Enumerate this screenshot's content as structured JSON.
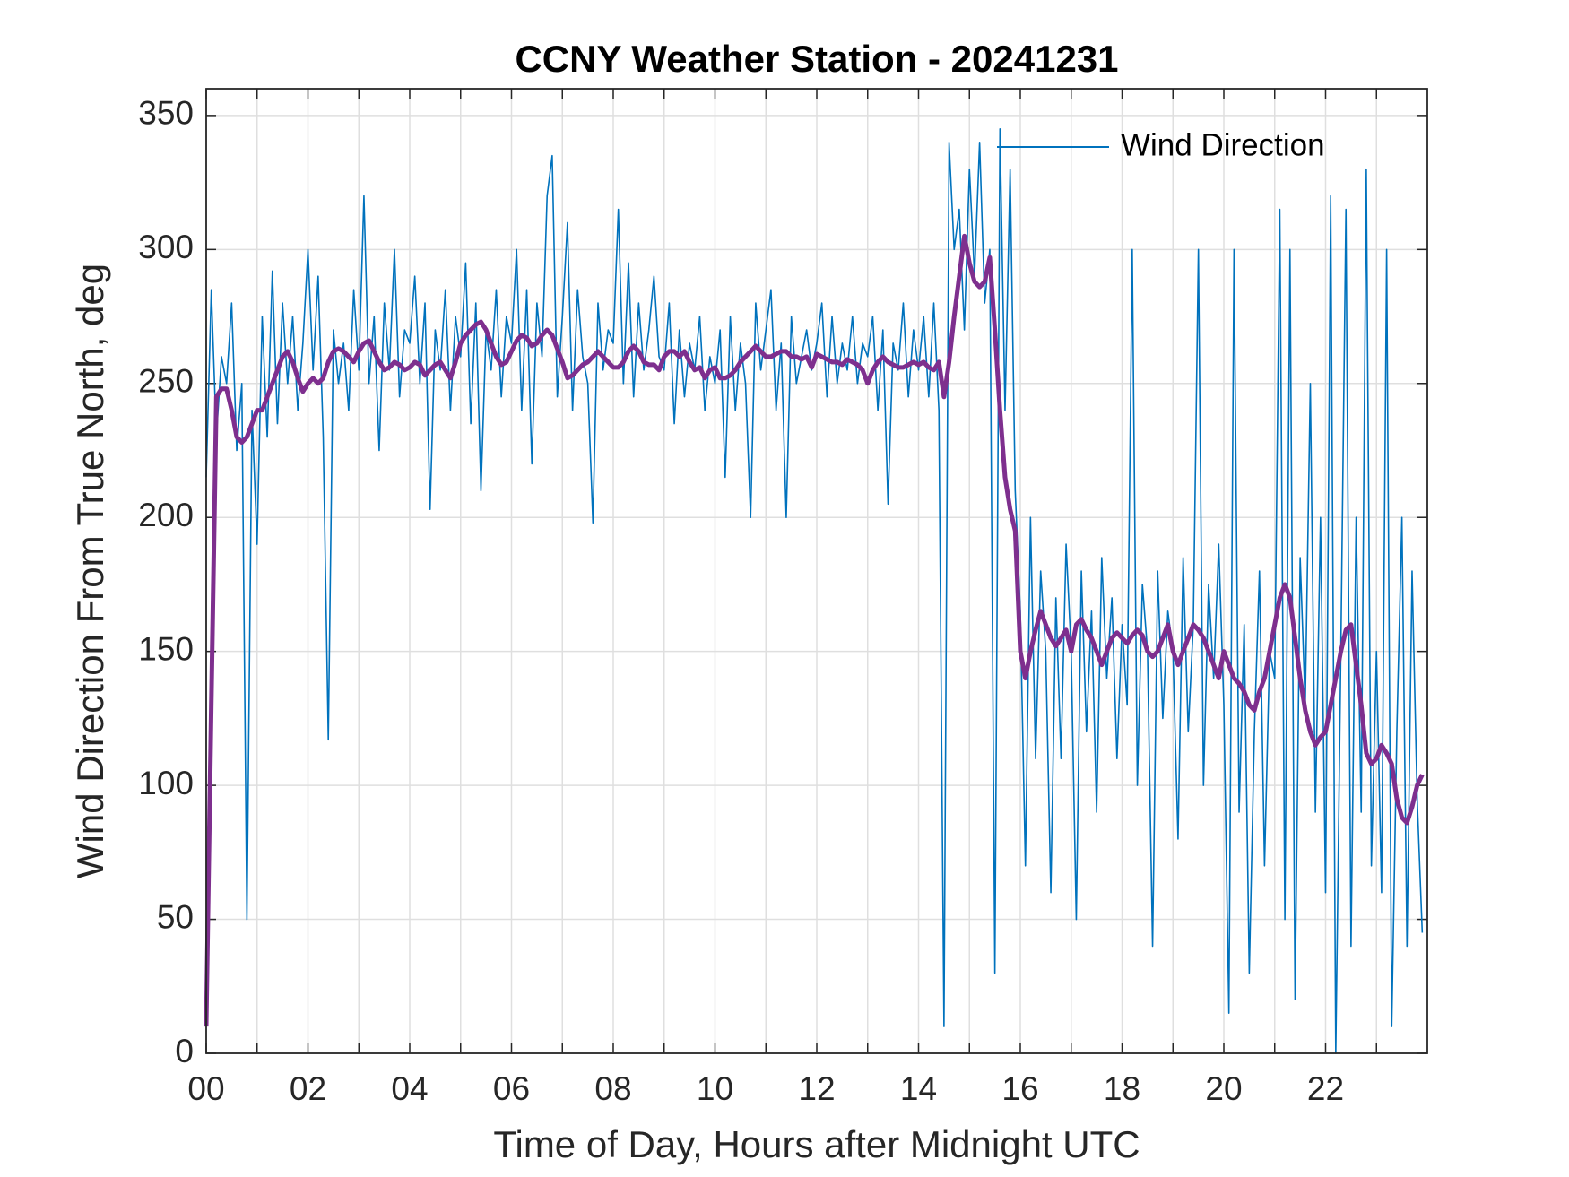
{
  "chart_data": {
    "type": "line",
    "title": "CCNY Weather Station - 20241231",
    "xlabel": "Time of Day, Hours after Midnight UTC",
    "ylabel": "Wind Direction From True North, deg",
    "xlim": [
      0,
      24
    ],
    "ylim": [
      0,
      360
    ],
    "xticks": [
      {
        "value": 0,
        "label": "00"
      },
      {
        "value": 2,
        "label": "02"
      },
      {
        "value": 4,
        "label": "04"
      },
      {
        "value": 6,
        "label": "06"
      },
      {
        "value": 8,
        "label": "08"
      },
      10,
      12,
      14,
      16,
      18,
      20,
      22
    ],
    "xminorticks": [
      1,
      3,
      5,
      7,
      9,
      11,
      13,
      15,
      17,
      19,
      21,
      23
    ],
    "yticks": [
      0,
      50,
      100,
      150,
      200,
      250,
      300,
      350
    ],
    "grid": true,
    "legend": "upper right",
    "x": [
      0,
      0.1,
      0.2,
      0.3,
      0.4,
      0.5,
      0.6,
      0.7,
      0.8,
      0.9,
      1,
      1.1,
      1.2,
      1.3,
      1.4,
      1.5,
      1.6,
      1.7,
      1.8,
      1.9,
      2,
      2.1,
      2.2,
      2.3,
      2.4,
      2.5,
      2.6,
      2.7,
      2.8,
      2.9,
      3,
      3.1,
      3.2,
      3.3,
      3.4,
      3.5,
      3.6,
      3.7,
      3.8,
      3.9,
      4,
      4.1,
      4.2,
      4.3,
      4.4,
      4.5,
      4.6,
      4.7,
      4.8,
      4.9,
      5,
      5.1,
      5.2,
      5.3,
      5.4,
      5.5,
      5.6,
      5.7,
      5.8,
      5.9,
      6,
      6.1,
      6.2,
      6.3,
      6.4,
      6.5,
      6.6,
      6.7,
      6.8,
      6.9,
      7,
      7.1,
      7.2,
      7.3,
      7.4,
      7.5,
      7.6,
      7.7,
      7.8,
      7.9,
      8,
      8.1,
      8.2,
      8.3,
      8.4,
      8.5,
      8.6,
      8.7,
      8.8,
      8.9,
      9,
      9.1,
      9.2,
      9.3,
      9.4,
      9.5,
      9.6,
      9.7,
      9.8,
      9.9,
      10,
      10.1,
      10.2,
      10.3,
      10.4,
      10.5,
      10.6,
      10.7,
      10.8,
      10.9,
      11,
      11.1,
      11.2,
      11.3,
      11.4,
      11.5,
      11.6,
      11.7,
      11.8,
      11.9,
      12,
      12.1,
      12.2,
      12.3,
      12.4,
      12.5,
      12.6,
      12.7,
      12.8,
      12.9,
      13,
      13.1,
      13.2,
      13.3,
      13.4,
      13.5,
      13.6,
      13.7,
      13.8,
      13.9,
      14,
      14.1,
      14.2,
      14.3,
      14.4,
      14.5,
      14.6,
      14.7,
      14.8,
      14.9,
      15,
      15.1,
      15.2,
      15.3,
      15.4,
      15.5,
      15.6,
      15.7,
      15.8,
      15.9,
      16,
      16.1,
      16.2,
      16.3,
      16.4,
      16.5,
      16.6,
      16.7,
      16.8,
      16.9,
      17,
      17.1,
      17.2,
      17.3,
      17.4,
      17.5,
      17.6,
      17.7,
      17.8,
      17.9,
      18,
      18.1,
      18.2,
      18.3,
      18.4,
      18.5,
      18.6,
      18.7,
      18.8,
      18.9,
      19,
      19.1,
      19.2,
      19.3,
      19.4,
      19.5,
      19.6,
      19.7,
      19.8,
      19.9,
      20,
      20.1,
      20.2,
      20.3,
      20.4,
      20.5,
      20.6,
      20.7,
      20.8,
      20.9,
      21,
      21.1,
      21.2,
      21.3,
      21.4,
      21.5,
      21.6,
      21.7,
      21.8,
      21.9,
      22,
      22.1,
      22.2,
      22.3,
      22.4,
      22.5,
      22.6,
      22.7,
      22.8,
      22.9,
      23,
      23.1,
      23.2,
      23.3,
      23.4,
      23.5,
      23.6,
      23.7,
      23.8,
      23.9
    ],
    "series": [
      {
        "name": "Wind Direction",
        "color": "#0072bd",
        "values": [
          215,
          285,
          230,
          260,
          250,
          280,
          225,
          250,
          50,
          240,
          190,
          275,
          230,
          292,
          235,
          280,
          250,
          275,
          240,
          265,
          300,
          255,
          290,
          230,
          117,
          270,
          250,
          265,
          240,
          285,
          255,
          320,
          250,
          275,
          225,
          280,
          255,
          300,
          245,
          270,
          265,
          290,
          250,
          280,
          203,
          270,
          255,
          285,
          240,
          275,
          260,
          295,
          235,
          280,
          210,
          270,
          255,
          285,
          245,
          275,
          265,
          300,
          240,
          285,
          220,
          280,
          260,
          320,
          335,
          245,
          275,
          310,
          240,
          285,
          260,
          250,
          198,
          280,
          255,
          270,
          265,
          315,
          250,
          295,
          245,
          280,
          255,
          270,
          290,
          260,
          255,
          280,
          235,
          270,
          245,
          265,
          255,
          275,
          240,
          260,
          250,
          270,
          215,
          275,
          240,
          265,
          250,
          200,
          280,
          255,
          270,
          285,
          240,
          265,
          200,
          275,
          250,
          260,
          270,
          255,
          265,
          280,
          245,
          275,
          250,
          265,
          255,
          275,
          250,
          265,
          260,
          275,
          240,
          270,
          205,
          265,
          255,
          280,
          245,
          270,
          255,
          275,
          245,
          280,
          240,
          10,
          340,
          300,
          315,
          270,
          330,
          290,
          340,
          280,
          300,
          30,
          345,
          240,
          330,
          210,
          165,
          70,
          200,
          110,
          180,
          150,
          60,
          170,
          110,
          190,
          150,
          50,
          180,
          120,
          165,
          90,
          185,
          140,
          170,
          110,
          160,
          130,
          300,
          100,
          175,
          150,
          40,
          180,
          125,
          165,
          150,
          80,
          185,
          120,
          160,
          300,
          100,
          175,
          140,
          190,
          130,
          15,
          300,
          90,
          160,
          30,
          120,
          180,
          70,
          150,
          140,
          315,
          50,
          300,
          20,
          185,
          130,
          250,
          90,
          200,
          60,
          320,
          0,
          150,
          315,
          40,
          200,
          90,
          330,
          70,
          150,
          60,
          300,
          10,
          120,
          200,
          40,
          180,
          95,
          45
        ]
      },
      {
        "color": "#7e2f8e",
        "values": [
          10,
          130,
          245,
          248,
          248,
          240,
          230,
          228,
          230,
          235,
          240,
          240,
          245,
          250,
          255,
          260,
          262,
          258,
          252,
          247,
          250,
          252,
          250,
          252,
          258,
          262,
          263,
          262,
          260,
          258,
          262,
          265,
          266,
          262,
          258,
          255,
          256,
          258,
          257,
          255,
          256,
          258,
          257,
          253,
          255,
          257,
          258,
          255,
          252,
          258,
          265,
          268,
          270,
          272,
          273,
          270,
          265,
          260,
          257,
          258,
          262,
          266,
          268,
          267,
          264,
          265,
          268,
          270,
          268,
          263,
          258,
          252,
          253,
          255,
          257,
          258,
          260,
          262,
          260,
          258,
          256,
          256,
          258,
          262,
          264,
          262,
          258,
          257,
          257,
          255,
          260,
          262,
          262,
          260,
          262,
          258,
          255,
          256,
          252,
          255,
          256,
          252,
          252,
          253,
          255,
          258,
          260,
          262,
          264,
          262,
          260,
          260,
          261,
          262,
          262,
          260,
          260,
          259,
          260,
          256,
          261,
          260,
          259,
          258,
          258,
          257,
          259,
          258,
          257,
          255,
          250,
          255,
          258,
          260,
          258,
          257,
          256,
          256,
          257,
          258,
          257,
          258,
          256,
          255,
          258,
          245,
          258,
          275,
          290,
          305,
          295,
          288,
          286,
          288,
          297,
          270,
          240,
          215,
          203,
          195,
          150,
          140,
          150,
          158,
          165,
          160,
          155,
          152,
          155,
          158,
          150,
          160,
          162,
          158,
          155,
          150,
          145,
          150,
          155,
          157,
          155,
          153,
          156,
          158,
          156,
          150,
          148,
          150,
          155,
          160,
          150,
          145,
          150,
          155,
          160,
          158,
          155,
          150,
          145,
          140,
          150,
          145,
          140,
          138,
          135,
          130,
          128,
          135,
          140,
          150,
          160,
          170,
          175,
          170,
          155,
          140,
          128,
          120,
          115,
          118,
          120,
          130,
          140,
          150,
          158,
          160,
          145,
          130,
          112,
          108,
          110,
          115,
          112,
          108,
          95,
          88,
          86,
          92,
          100,
          104
        ]
      }
    ]
  }
}
